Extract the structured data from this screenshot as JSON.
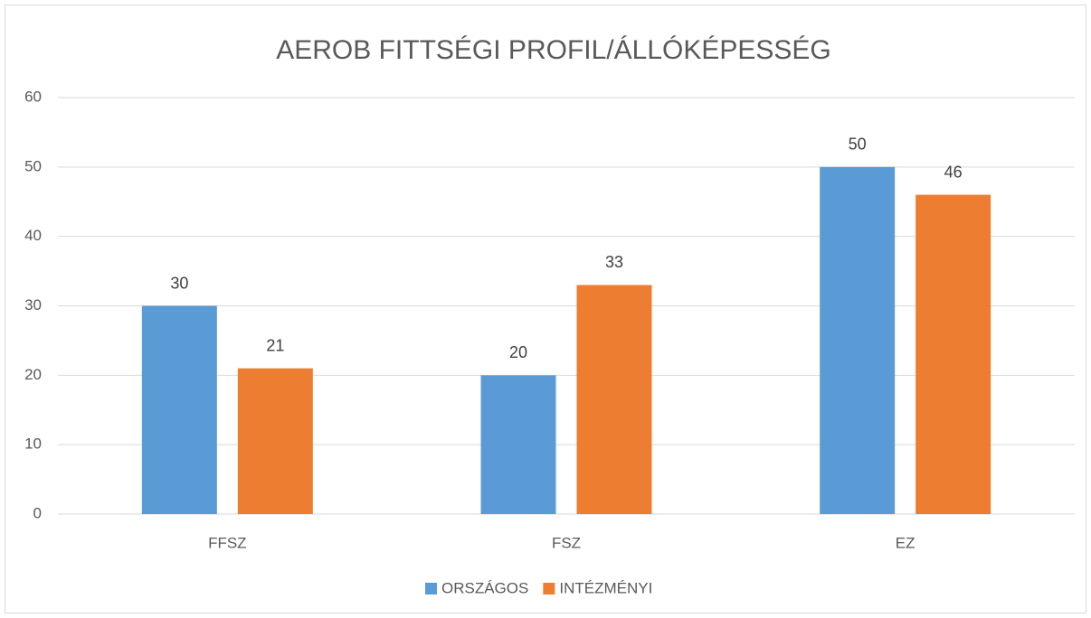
{
  "chart_data": {
    "type": "bar",
    "title": "AEROB FITTSÉGI PROFIL/ÁLLÓKÉPESSÉG",
    "categories": [
      "FFSZ",
      "FSZ",
      "EZ"
    ],
    "series": [
      {
        "name": "ORSZÁGOS",
        "color": "#5b9bd5",
        "values": [
          30,
          20,
          50
        ]
      },
      {
        "name": "INTÉZMÉNYI",
        "color": "#ed7d31",
        "values": [
          21,
          33,
          46
        ]
      }
    ],
    "ylim": [
      0,
      60
    ],
    "yticks": [
      0,
      10,
      20,
      30,
      40,
      50,
      60
    ],
    "grid": true,
    "legend": "bottom"
  }
}
